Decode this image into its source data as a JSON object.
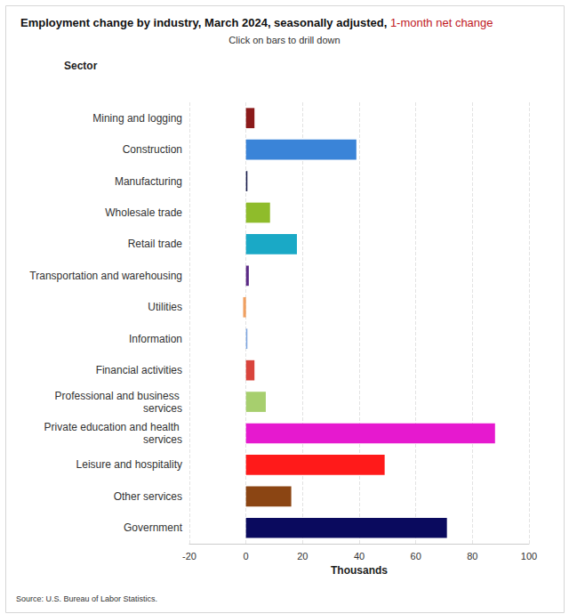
{
  "chart_data": {
    "type": "bar",
    "title": "Employment change by industry, March 2024, seasonally adjusted, 1-month net change",
    "title_highlight": "1-month net change",
    "subtitle": "Click on bars to drill down",
    "y_label": "Sector",
    "x_label": "Thousands",
    "source": "Source: U.S. Bureau of Labor Statistics.",
    "orientation": "horizontal",
    "categories": [
      "Mining and logging",
      "Construction",
      "Manufacturing",
      "Wholesale trade",
      "Retail trade",
      "Transportation and warehousing",
      "Utilities",
      "Information",
      "Financial activities",
      "Professional and business services",
      "Private education and health services",
      "Leisure and hospitality",
      "Other services",
      "Government"
    ],
    "values": [
      3,
      39,
      0.5,
      8.5,
      18,
      1,
      -1,
      0.5,
      3,
      7,
      88,
      49,
      16,
      71
    ],
    "colors": [
      "#8b1a1a",
      "#3a84d8",
      "#1a1f4d",
      "#8fbc2b",
      "#1aa9c6",
      "#5b2a86",
      "#f0a060",
      "#7ea6e0",
      "#d9443c",
      "#a7cf6e",
      "#e619cf",
      "#ff1a1a",
      "#8b4513",
      "#0a0a5e"
    ],
    "xlim": [
      -20,
      100
    ],
    "xticks": [
      -20,
      0,
      20,
      40,
      60,
      80,
      100
    ],
    "grid": true
  }
}
